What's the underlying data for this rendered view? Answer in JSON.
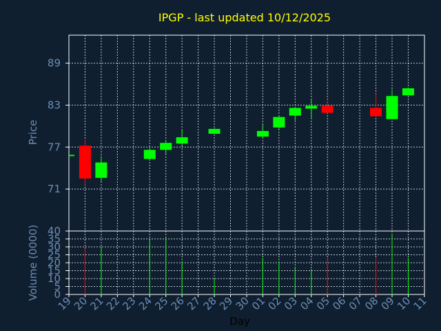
{
  "chart_data": {
    "type": "candlestick",
    "title": "IPGP - last updated 10/12/2025",
    "xlabel": "Day",
    "price_panel": {
      "ylabel": "Price",
      "ylim": [
        65,
        93
      ],
      "yticks": [
        71,
        77,
        83,
        89
      ],
      "grid": true
    },
    "volume_panel": {
      "ylabel": "Volume (0000)",
      "ylim": [
        0,
        40
      ],
      "yticks": [
        0,
        5,
        10,
        15,
        20,
        25,
        30,
        35,
        40
      ],
      "grid": true
    },
    "x_tick_labels": [
      "19",
      "20",
      "21",
      "22",
      "23",
      "24",
      "25",
      "26",
      "27",
      "28",
      "29",
      "30",
      "01",
      "02",
      "03",
      "04",
      "05",
      "06",
      "07",
      "08",
      "09",
      "10",
      "11"
    ],
    "candles": [
      {
        "day": "19",
        "open": 75.9,
        "high": 75.9,
        "low": 75.9,
        "close": 75.9,
        "volume": 0
      },
      {
        "day": "20",
        "open": 77.2,
        "high": 78.1,
        "low": 71.6,
        "close": 72.5,
        "volume": 29
      },
      {
        "day": "21",
        "open": 72.6,
        "high": 75.7,
        "low": 72.0,
        "close": 74.8,
        "volume": 30
      },
      {
        "day": "24",
        "open": 75.3,
        "high": 76.8,
        "low": 75.1,
        "close": 76.6,
        "volume": 34
      },
      {
        "day": "25",
        "open": 76.6,
        "high": 78.0,
        "low": 76.0,
        "close": 77.6,
        "volume": 36
      },
      {
        "day": "26",
        "open": 77.5,
        "high": 79.4,
        "low": 77.2,
        "close": 78.4,
        "volume": 21
      },
      {
        "day": "28",
        "open": 78.9,
        "high": 79.7,
        "low": 78.9,
        "close": 79.6,
        "volume": 10
      },
      {
        "day": "01",
        "open": 78.5,
        "high": 80.2,
        "low": 78.4,
        "close": 79.3,
        "volume": 23
      },
      {
        "day": "02",
        "open": 79.8,
        "high": 81.5,
        "low": 79.6,
        "close": 81.3,
        "volume": 21
      },
      {
        "day": "03",
        "open": 81.5,
        "high": 82.7,
        "low": 80.8,
        "close": 82.6,
        "volume": 17
      },
      {
        "day": "04",
        "open": 82.5,
        "high": 83.8,
        "low": 81.0,
        "close": 82.9,
        "volume": 16
      },
      {
        "day": "05",
        "open": 82.9,
        "high": 83.6,
        "low": 81.9,
        "close": 81.9,
        "volume": 23
      },
      {
        "day": "08",
        "open": 82.6,
        "high": 84.6,
        "low": 81.4,
        "close": 81.4,
        "volume": 23
      },
      {
        "day": "09",
        "open": 81.0,
        "high": 85.2,
        "low": 81.0,
        "close": 84.3,
        "volume": 38
      },
      {
        "day": "10",
        "open": 84.4,
        "high": 85.5,
        "low": 84.4,
        "close": 85.4,
        "volume": 23
      }
    ],
    "colors": {
      "background": "#0f1f30",
      "up": "#00ff00",
      "down": "#ff0000",
      "grid": "#ffffff",
      "axis_text": "#6d8eb2",
      "title": "#ffff00"
    }
  }
}
